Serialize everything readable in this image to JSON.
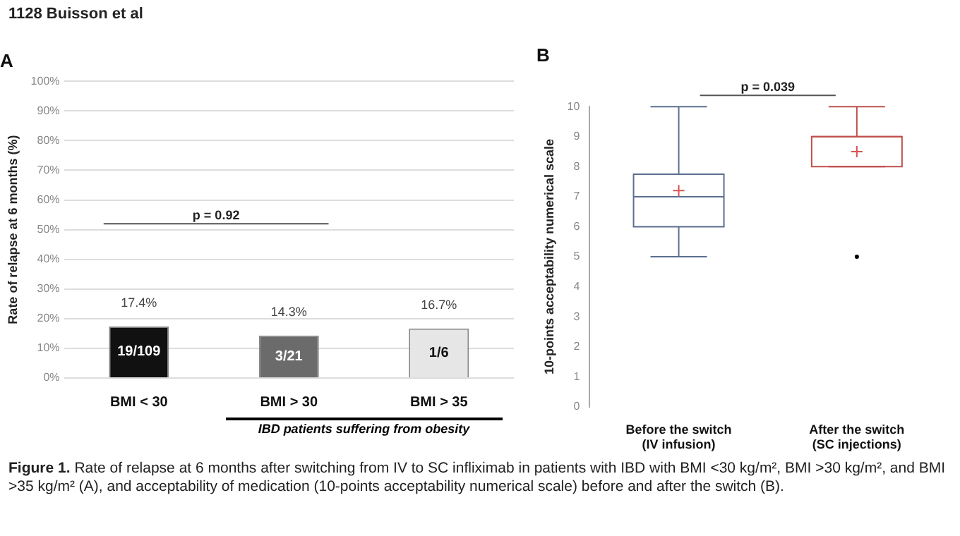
{
  "chart_data": [
    {
      "type": "bar",
      "title": "A",
      "ylabel": "Rate of relapse at 6 months (%)",
      "categories": [
        "BMI < 30",
        "BMI > 30",
        "BMI > 35"
      ],
      "values": [
        17.4,
        14.3,
        16.7
      ],
      "value_labels": [
        "17.4%",
        "14.3%",
        "16.7%"
      ],
      "colors": [
        "#111111",
        "#6b6b6b",
        "#e6e6e6"
      ],
      "ylim": [
        0,
        100
      ],
      "yticks": [
        {
          "value": 0,
          "label": "0%"
        },
        {
          "value": 10,
          "label": "10%"
        },
        {
          "value": 20,
          "label": "20%"
        },
        {
          "value": 30,
          "label": "30%"
        },
        {
          "value": 40,
          "label": "40%"
        },
        {
          "value": 50,
          "label": "50%"
        },
        {
          "value": 60,
          "label": "60%"
        },
        {
          "value": 70,
          "label": "70%"
        },
        {
          "value": 80,
          "label": "80%"
        },
        {
          "value": 90,
          "label": "90%"
        },
        {
          "value": 100,
          "label": "100%"
        }
      ],
      "grid": "y",
      "legend": false,
      "annotations": [
        "p = 0.92",
        "IBD patients suffering from obesity",
        "19/109",
        "3/21",
        "1/6"
      ]
    },
    {
      "type": "box",
      "title": "B",
      "ylabel": "10-points acceptability numerical scale",
      "categories": [
        "Before the switch\n(IV infusion)",
        "After the switch\n(SC injections)"
      ],
      "colors": [
        "#5b6f8f",
        "#c0504d"
      ],
      "boxes": [
        {
          "low": 5,
          "q1": 6,
          "median": 7,
          "q3": 7.75,
          "high": 10,
          "mean": 7.2
        },
        {
          "low": 8,
          "q1": 8,
          "median": 9,
          "q3": 9,
          "high": 10,
          "mean": 8.5,
          "outliers": [
            5
          ]
        }
      ],
      "ylim": [
        0,
        10
      ],
      "yticks": [
        0,
        1,
        2,
        3,
        4,
        5,
        6,
        7,
        8,
        9,
        10
      ],
      "grid": false,
      "legend": false,
      "annotations": [
        "p = 0.039"
      ]
    },
    {
      "type": "other",
      "title": "1128 Buisson et al",
      "annotations": [
        "Figure 1.",
        "Rate of relapse at 6 months after switching from IV to SC infliximab in patients with IBD with BMI <30 kg/m², BMI >30 kg/m², and BMI >35 kg/m² (A), and acceptability of medication (10-points acceptability numerical scale) before and after the switch (B)."
      ]
    }
  ]
}
